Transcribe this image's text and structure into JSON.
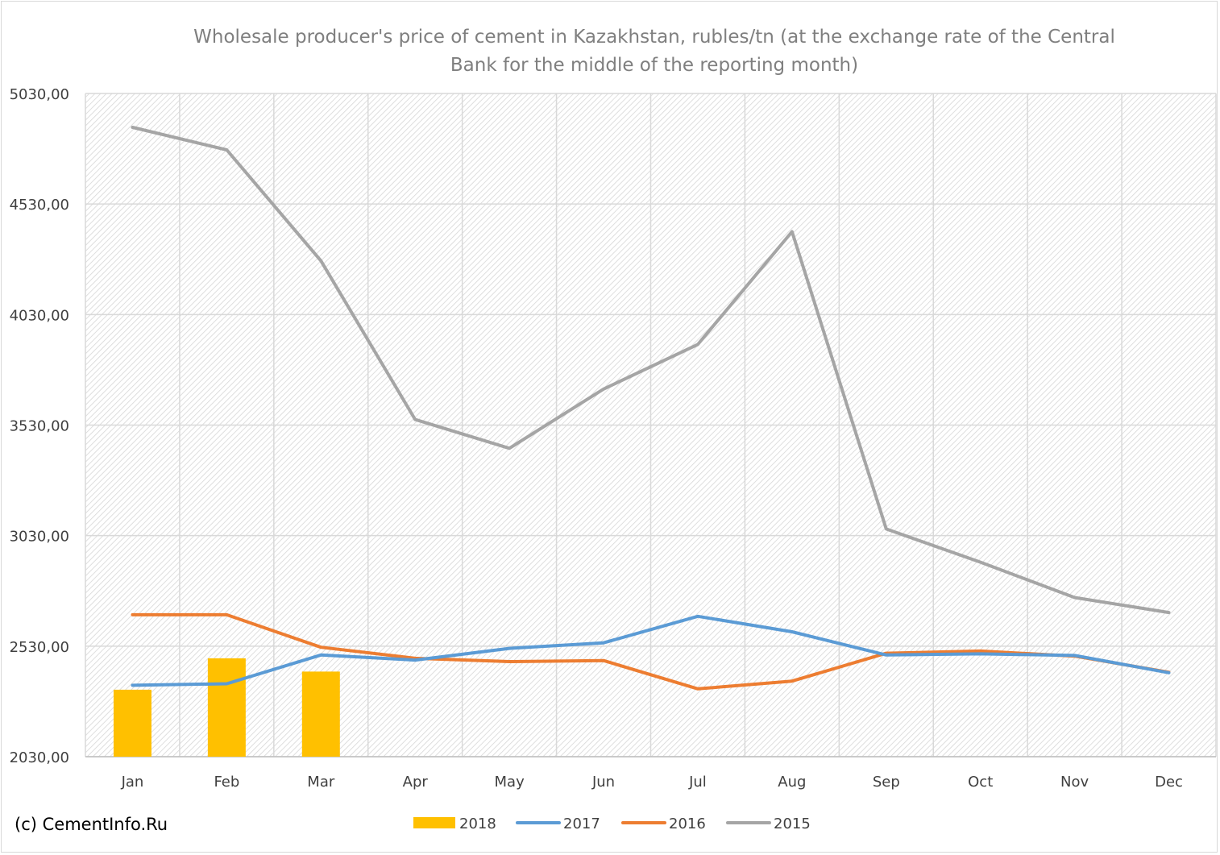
{
  "chart_data": {
    "type": "bar+line",
    "title_lines": [
      "Wholesale producer's price of cement in Kazakhstan, rubles/tn (at the exchange rate of the Central",
      "Bank for the middle of the reporting month)"
    ],
    "categories": [
      "Jan",
      "Feb",
      "Mar",
      "Apr",
      "May",
      "Jun",
      "Jul",
      "Aug",
      "Sep",
      "Oct",
      "Nov",
      "Dec"
    ],
    "ylim": [
      2030,
      5030
    ],
    "yticks": [
      2030,
      2530,
      3030,
      3530,
      4030,
      4530,
      5030
    ],
    "ytick_labels": [
      "2030,00",
      "2530,00",
      "3030,00",
      "3530,00",
      "4030,00",
      "4530,00",
      "5030,00"
    ],
    "grid": true,
    "legend_position": "bottom",
    "series": [
      {
        "name": "2018",
        "kind": "bar",
        "color": "#ffc000",
        "values": [
          2333,
          2475,
          2415,
          null,
          null,
          null,
          null,
          null,
          null,
          null,
          null,
          null
        ]
      },
      {
        "name": "2017",
        "kind": "line",
        "color": "#5b9bd5",
        "values": [
          2353,
          2360,
          2490,
          2467,
          2520,
          2545,
          2665,
          2595,
          2490,
          2495,
          2488,
          2410
        ]
      },
      {
        "name": "2016",
        "kind": "line",
        "color": "#ed7d31",
        "values": [
          2672,
          2672,
          2525,
          2475,
          2460,
          2465,
          2337,
          2372,
          2498,
          2508,
          2485,
          2412
        ]
      },
      {
        "name": "2015",
        "kind": "line",
        "color": "#a5a5a5",
        "values": [
          4877,
          4775,
          4273,
          3555,
          3425,
          3693,
          3895,
          4405,
          3060,
          2910,
          2750,
          2682
        ]
      }
    ]
  },
  "credit": "(c) CementInfo.Ru"
}
